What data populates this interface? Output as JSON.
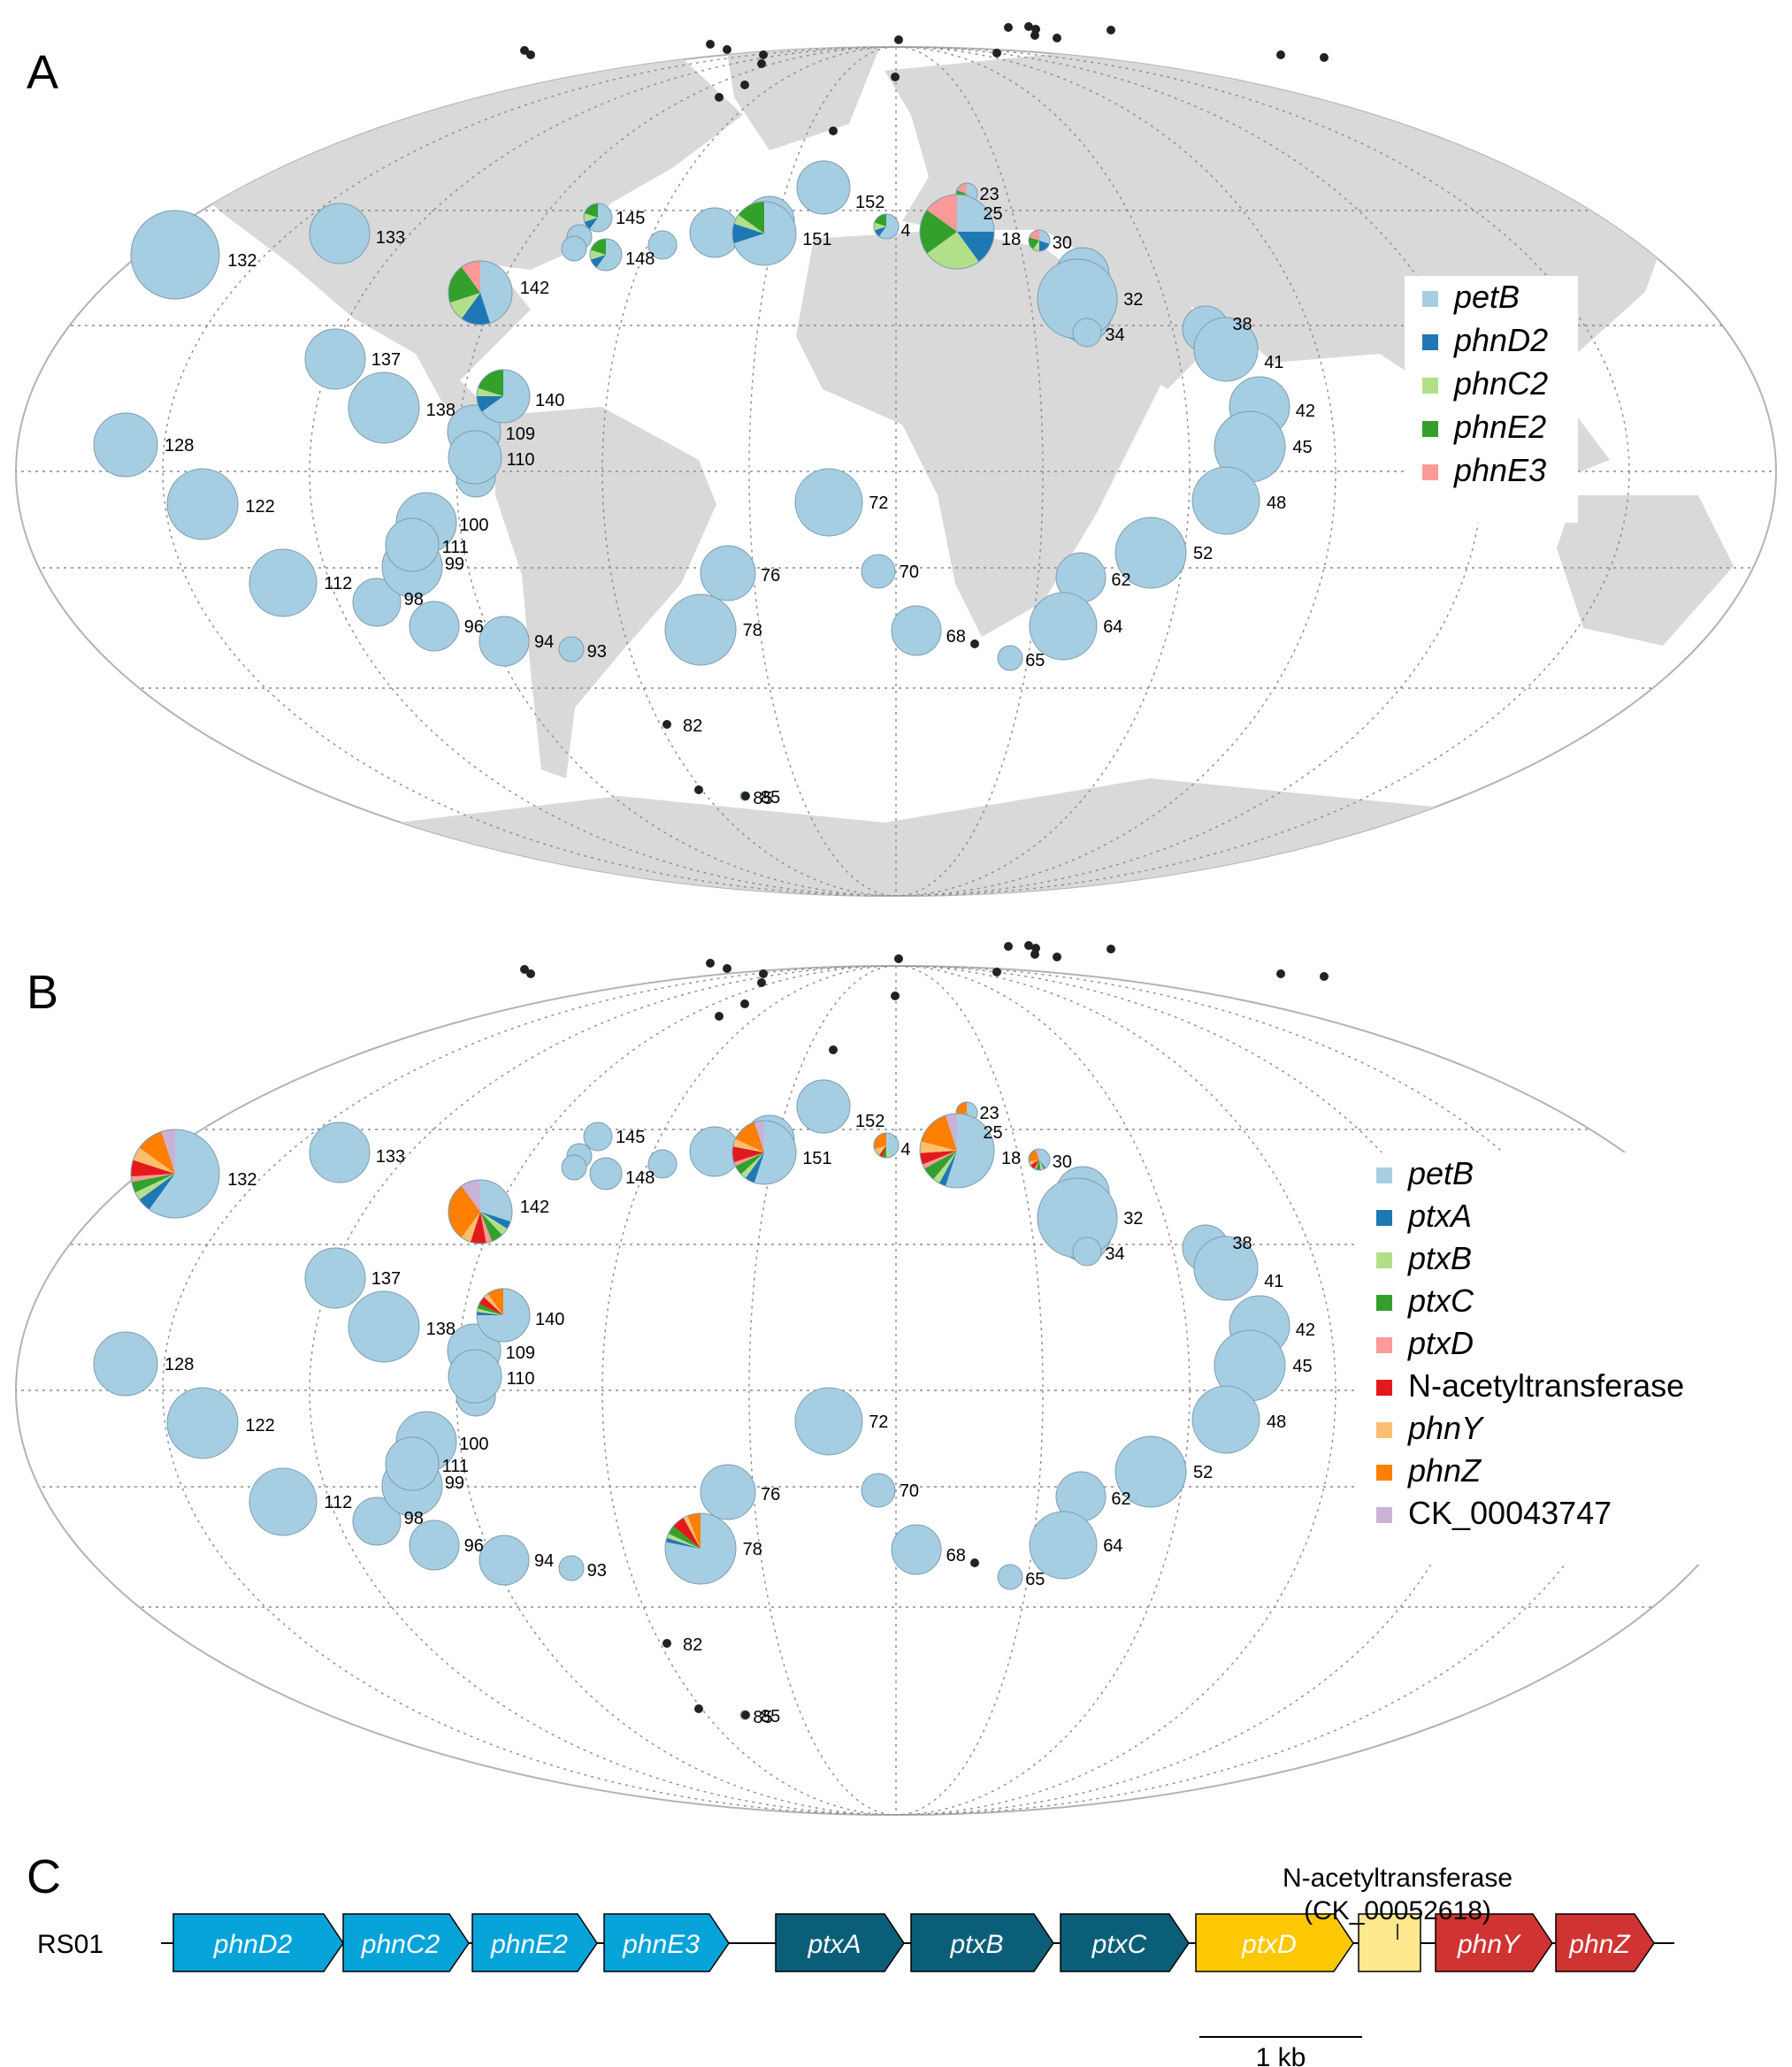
{
  "panels": [
    {
      "letter": "A",
      "legend": [
        {
          "label": "petB",
          "color": "#a6cee3",
          "italic": true
        },
        {
          "label": "phnD2",
          "color": "#1f78b4",
          "italic": true
        },
        {
          "label": "phnC2",
          "color": "#b2df8a",
          "italic": true
        },
        {
          "label": "phnE2",
          "color": "#33a02c",
          "italic": true
        },
        {
          "label": "phnE3",
          "color": "#fb9a99",
          "italic": true
        }
      ]
    },
    {
      "letter": "B",
      "legend": [
        {
          "label": "petB",
          "color": "#a6cee3",
          "italic": true
        },
        {
          "label": "ptxA",
          "color": "#1f78b4",
          "italic": true
        },
        {
          "label": "ptxB",
          "color": "#b2df8a",
          "italic": true
        },
        {
          "label": "ptxC",
          "color": "#33a02c",
          "italic": true
        },
        {
          "label": "ptxD",
          "color": "#fb9a99",
          "italic": true
        },
        {
          "label": "N-acetyltransferase",
          "color": "#e31a1c",
          "italic": false
        },
        {
          "label": "phnY",
          "color": "#fdbf6f",
          "italic": true
        },
        {
          "label": "phnZ",
          "color": "#ff7f00",
          "italic": true
        },
        {
          "label": "CK_00043747",
          "color": "#cab2d6",
          "italic": false
        }
      ]
    }
  ],
  "stations": [
    "132",
    "133",
    "145",
    "148",
    "151",
    "152",
    "4",
    "23",
    "25",
    "18",
    "30",
    "32",
    "34",
    "38",
    "41",
    "42",
    "45",
    "48",
    "52",
    "62",
    "64",
    "65",
    "68",
    "70",
    "72",
    "76",
    "78",
    "82",
    "85",
    "93",
    "94",
    "96",
    "98",
    "99",
    "100",
    "111",
    "112",
    "122",
    "128",
    "138",
    "137",
    "109",
    "110",
    "140",
    "142"
  ],
  "panel_c": {
    "letter": "C",
    "strain": "RS01",
    "genes": [
      {
        "label": "phnD2",
        "color": "#06a3d9"
      },
      {
        "label": "phnC2",
        "color": "#06a3d9"
      },
      {
        "label": "phnE2",
        "color": "#06a3d9"
      },
      {
        "label": "phnE3",
        "color": "#06a3d9"
      },
      {
        "label": "ptxA",
        "color": "#0b5e78"
      },
      {
        "label": "ptxB",
        "color": "#0b5e78"
      },
      {
        "label": "ptxC",
        "color": "#0b5e78"
      },
      {
        "label": "ptxD",
        "color": "#fcc803"
      },
      {
        "label": "",
        "color": "#fde88e"
      },
      {
        "label": "phnY",
        "color": "#cf3432"
      },
      {
        "label": "phnZ",
        "color": "#cf3432"
      }
    ],
    "annotation_line1": "N-acetyltransferase",
    "annotation_line2": "(CK_00052618)",
    "scale_label": "1 kb"
  }
}
